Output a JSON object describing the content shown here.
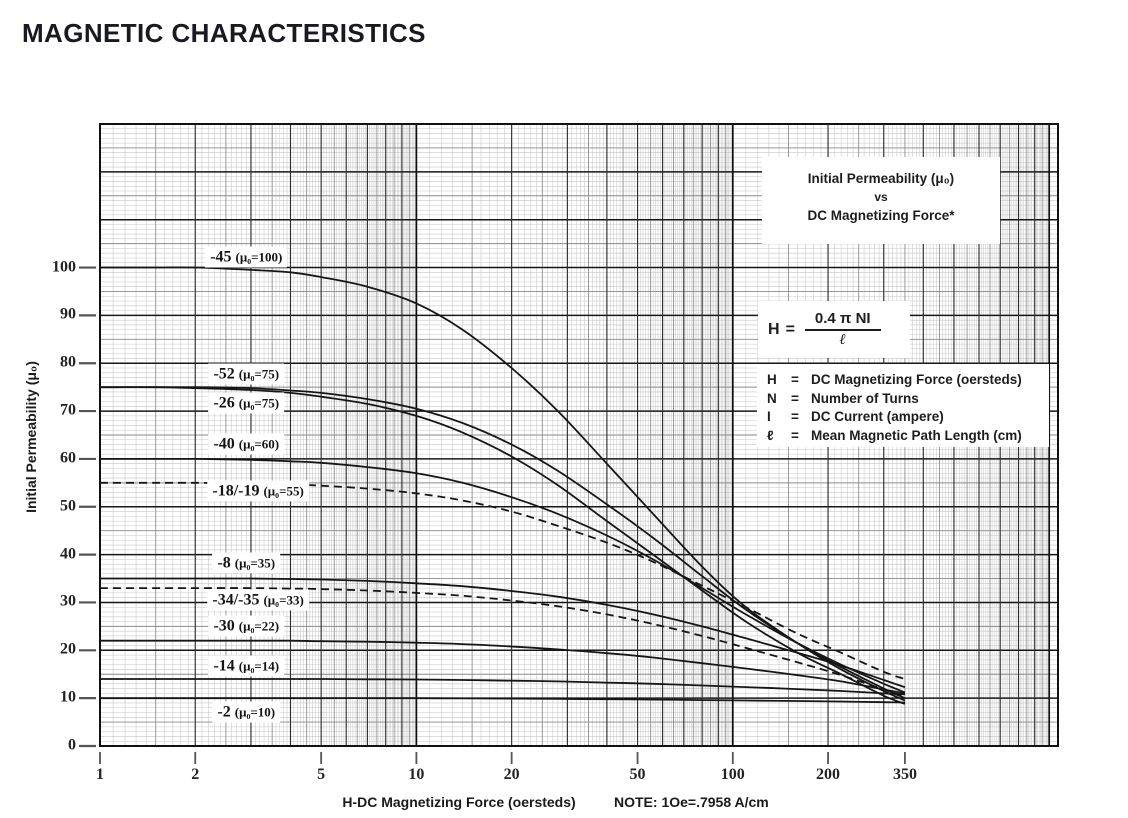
{
  "title": "MAGNETIC CHARACTERISTICS",
  "chart_data": {
    "type": "line",
    "x_scale": "log",
    "title": "Initial Permeability (μ₀) vs DC Magnetizing Force",
    "xlabel": "H-DC Magnetizing Force (oersteds)",
    "ylabel": "Initial Permeability (μ₀)",
    "note": "NOTE: 1Oe=.7958 A/cm",
    "x_ticks": [
      1,
      2,
      5,
      10,
      20,
      50,
      100,
      200,
      350
    ],
    "y_ticks": [
      0,
      10,
      20,
      30,
      40,
      50,
      60,
      70,
      80,
      90,
      100
    ],
    "xlim": [
      1,
      1066
    ],
    "ylim": [
      0,
      130
    ],
    "grid": "full log-x, 1-unit linear-y",
    "x": [
      1,
      1.5,
      2,
      3,
      4,
      5,
      7,
      10,
      14,
      20,
      28,
      40,
      56,
      80,
      110,
      160,
      220,
      300,
      350
    ],
    "series": [
      {
        "name": "-45",
        "mu0": 100,
        "label_detail": "(μ₀=100)",
        "style": "solid",
        "label_h": 2.9,
        "label_mu": 102.3,
        "values": [
          100,
          100,
          100,
          99.5,
          99,
          98,
          96,
          92.5,
          87,
          79,
          70,
          59,
          48.5,
          37.5,
          29,
          21.5,
          16,
          11.5,
          9.5
        ]
      },
      {
        "name": "-52",
        "mu0": 75,
        "label_detail": "(μ₀=75)",
        "style": "solid",
        "label_h": 2.9,
        "label_mu": 77.7,
        "values": [
          75,
          75,
          75,
          74.8,
          74.3,
          73.8,
          72.5,
          70.5,
          67.5,
          63,
          57.5,
          50.5,
          43.5,
          35.5,
          28.5,
          21.5,
          16.5,
          12,
          10
        ]
      },
      {
        "name": "-26",
        "mu0": 75,
        "label_detail": "(μ₀=75)",
        "style": "solid",
        "label_h": 2.9,
        "label_mu": 71.6,
        "values": [
          75,
          75,
          74.8,
          74.4,
          73.8,
          73,
          71.5,
          69,
          65.5,
          60.5,
          54.5,
          47,
          40,
          32.5,
          26,
          19.5,
          15,
          10.5,
          8.8
        ]
      },
      {
        "name": "-40",
        "mu0": 60,
        "label_detail": "(μ₀=60)",
        "style": "solid",
        "label_h": 2.9,
        "label_mu": 63.1,
        "values": [
          60,
          60,
          60,
          59.8,
          59.5,
          59.2,
          58.3,
          57,
          55,
          52,
          48.5,
          44,
          39,
          33,
          27.5,
          21.5,
          17,
          13,
          11.2
        ]
      },
      {
        "name": "-18/-19",
        "mu0": 55,
        "label_detail": "(μ₀=55)",
        "style": "dashed",
        "label_h": 3.16,
        "label_mu": 53.4,
        "values": [
          55,
          55,
          55,
          54.9,
          54.7,
          54.4,
          53.8,
          52.8,
          51.3,
          49,
          46,
          42.5,
          38.5,
          33.5,
          29,
          23.5,
          19.5,
          15.5,
          14
        ]
      },
      {
        "name": "-8",
        "mu0": 35,
        "label_detail": "(μ₀=35)",
        "style": "solid",
        "label_h": 2.9,
        "label_mu": 38.2,
        "values": [
          35,
          35,
          35,
          35,
          34.9,
          34.8,
          34.5,
          34,
          33.4,
          32.4,
          31.2,
          29.5,
          27.5,
          25,
          22.5,
          19.5,
          16.8,
          13.8,
          12.3
        ]
      },
      {
        "name": "-34/-35",
        "mu0": 33,
        "label_detail": "(μ₀=33)",
        "style": "dashed",
        "label_h": 3.16,
        "label_mu": 30.5,
        "values": [
          33,
          33,
          33,
          33,
          32.9,
          32.8,
          32.5,
          32,
          31.4,
          30.4,
          29.2,
          27.5,
          25.5,
          23,
          20.5,
          17.5,
          14.8,
          11.8,
          10.3
        ]
      },
      {
        "name": "-30",
        "mu0": 22,
        "label_detail": "(μ₀=22)",
        "style": "solid",
        "label_h": 2.9,
        "label_mu": 25.1,
        "values": [
          22,
          22,
          22,
          22,
          22,
          21.9,
          21.8,
          21.6,
          21.3,
          20.8,
          20.2,
          19.4,
          18.5,
          17.3,
          16.2,
          14.8,
          13.5,
          11.8,
          11
        ]
      },
      {
        "name": "-14",
        "mu0": 14,
        "label_detail": "(μ₀=14)",
        "style": "solid",
        "label_h": 2.9,
        "label_mu": 16.7,
        "values": [
          14,
          14,
          14,
          14,
          14,
          14,
          13.95,
          13.9,
          13.8,
          13.65,
          13.5,
          13.25,
          13,
          12.65,
          12.3,
          11.9,
          11.5,
          11,
          10.8
        ]
      },
      {
        "name": "-2",
        "mu0": 10,
        "label_detail": "(μ₀=10)",
        "style": "solid",
        "label_h": 2.9,
        "label_mu": 7.1,
        "values": [
          10,
          10,
          10,
          10,
          10,
          10,
          10,
          9.98,
          9.95,
          9.9,
          9.85,
          9.78,
          9.7,
          9.6,
          9.5,
          9.4,
          9.3,
          9.15,
          9.1
        ]
      }
    ],
    "inset": {
      "line1": "Initial Permeability (μ₀)",
      "line2": "vs",
      "line3": "DC Magnetizing Force*"
    },
    "formula": {
      "lhs": "H",
      "eq": "=",
      "numerator": "0.4 π NI",
      "denominator": "ℓ"
    },
    "definitions": [
      {
        "symbol": "H",
        "eq": "=",
        "definition": "DC Magnetizing Force (oersteds)"
      },
      {
        "symbol": "N",
        "eq": "=",
        "definition": "Number of Turns"
      },
      {
        "symbol": "I",
        "eq": "=",
        "definition": "DC Current (ampere)"
      },
      {
        "symbol": "ℓ",
        "eq": "=",
        "definition": "Mean Magnetic Path Length (cm)"
      }
    ],
    "colors": {
      "curve": "#161616",
      "grid_major": "#161616",
      "grid_mid": "#8a8a8a",
      "grid_minor": "#c7c7c7",
      "text": "#191922",
      "background": "#ffffff"
    }
  }
}
